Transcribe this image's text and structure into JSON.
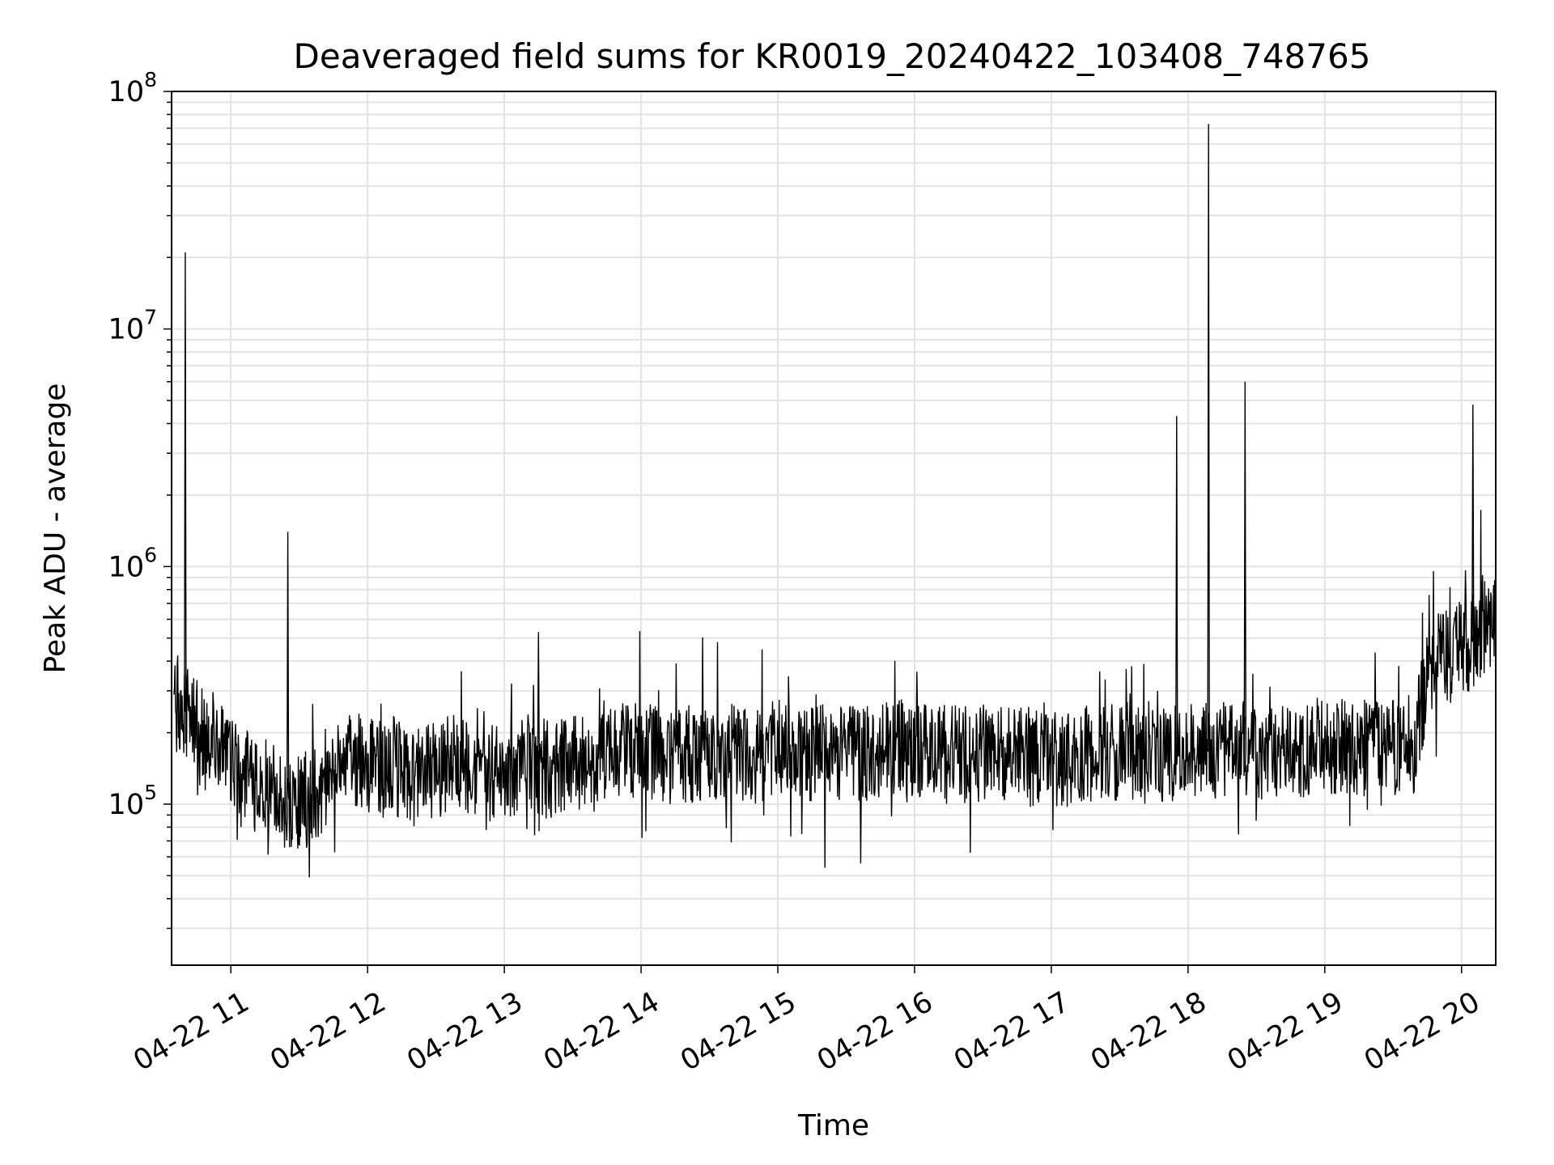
{
  "chart_data": {
    "type": "line",
    "title": "Deaveraged field sums for KR0019_20240422_103408_748765",
    "xlabel": "Time",
    "ylabel": "Peak ADU - average",
    "yscale": "log",
    "grid": true,
    "legend": "none",
    "line_color": "#000000",
    "xlim": [
      "2024-04-22 10:34",
      "2024-04-22 20:15"
    ],
    "ylim": [
      21000,
      100000000
    ],
    "x_tick_labels": [
      "04-22 11",
      "04-22 12",
      "04-22 13",
      "04-22 14",
      "04-22 15",
      "04-22 16",
      "04-22 17",
      "04-22 18",
      "04-22 19",
      "04-22 20"
    ],
    "y_tick_labels": [
      {
        "base": "10",
        "exp": "5"
      },
      {
        "base": "10",
        "exp": "6"
      },
      {
        "base": "10",
        "exp": "7"
      },
      {
        "base": "10",
        "exp": "8"
      }
    ],
    "series": [
      {
        "x": [
          "2024-04-22 10:35",
          "2024-04-22 10:40",
          "2024-04-22 10:45",
          "2024-04-22 10:50",
          "2024-04-22 10:55",
          "2024-04-22 11:00",
          "2024-04-22 11:10",
          "2024-04-22 11:20",
          "2024-04-22 11:25",
          "2024-04-22 11:30",
          "2024-04-22 11:40",
          "2024-04-22 11:50",
          "2024-04-22 12:00",
          "2024-04-22 12:10",
          "2024-04-22 12:20",
          "2024-04-22 12:30",
          "2024-04-22 12:40",
          "2024-04-22 12:50",
          "2024-04-22 13:00",
          "2024-04-22 13:10",
          "2024-04-22 13:15",
          "2024-04-22 13:20",
          "2024-04-22 13:30",
          "2024-04-22 13:45",
          "2024-04-22 14:00",
          "2024-04-22 14:15",
          "2024-04-22 14:30",
          "2024-04-22 14:45",
          "2024-04-22 15:00",
          "2024-04-22 15:15",
          "2024-04-22 15:30",
          "2024-04-22 15:45",
          "2024-04-22 16:00",
          "2024-04-22 16:15",
          "2024-04-22 16:30",
          "2024-04-22 16:45",
          "2024-04-22 17:00",
          "2024-04-22 17:15",
          "2024-04-22 17:30",
          "2024-04-22 17:45",
          "2024-04-22 17:50",
          "2024-04-22 17:55",
          "2024-04-22 18:00",
          "2024-04-22 18:05",
          "2024-04-22 18:09",
          "2024-04-22 18:15",
          "2024-04-22 18:20",
          "2024-04-22 18:25",
          "2024-04-22 18:30",
          "2024-04-22 18:45",
          "2024-04-22 19:00",
          "2024-04-22 19:15",
          "2024-04-22 19:30",
          "2024-04-22 19:40",
          "2024-04-22 19:45",
          "2024-04-22 19:50",
          "2024-04-22 19:55",
          "2024-04-22 20:00",
          "2024-04-22 20:05",
          "2024-04-22 20:10",
          "2024-04-22 20:15"
        ],
        "y": [
          300000,
          21000000,
          200000,
          180000,
          160000,
          150000,
          120000,
          110000,
          1400000,
          100000,
          120000,
          170000,
          140000,
          150000,
          130000,
          140000,
          150000,
          130000,
          140000,
          150000,
          530000,
          140000,
          150000,
          160000,
          170000,
          160000,
          170000,
          160000,
          170000,
          165000,
          160000,
          170000,
          175000,
          160000,
          165000,
          160000,
          155000,
          160000,
          165000,
          170000,
          160000,
          4300000,
          180000,
          170000,
          73000000,
          170000,
          175000,
          6000000,
          165000,
          170000,
          175000,
          170000,
          175000,
          180000,
          370000,
          400000,
          420000,
          450000,
          4800000,
          550000,
          560000
        ]
      }
    ]
  }
}
